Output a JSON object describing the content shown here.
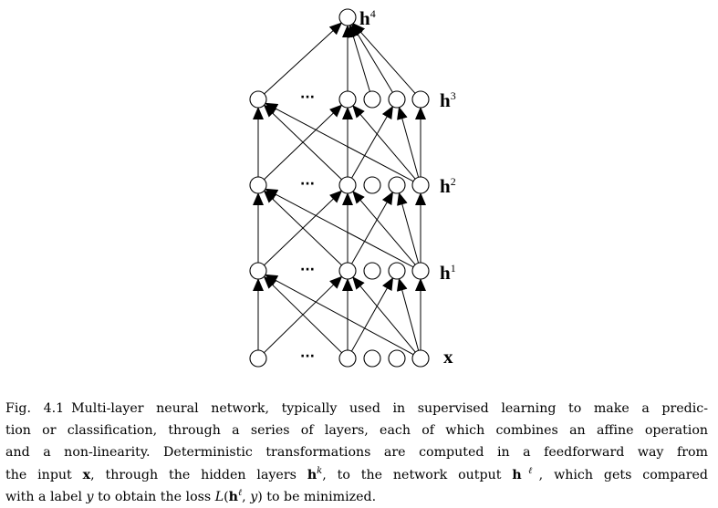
{
  "figure": {
    "layers": [
      {
        "id": "x",
        "base": "x",
        "sup": ""
      },
      {
        "id": "h1",
        "base": "h",
        "sup": "1"
      },
      {
        "id": "h2",
        "base": "h",
        "sup": "2"
      },
      {
        "id": "h3",
        "base": "h",
        "sup": "3"
      },
      {
        "id": "h4",
        "base": "h",
        "sup": "4"
      }
    ],
    "ellipsis": "···"
  },
  "caption": {
    "label": "Fig. 4.1",
    "line1": "Multi-layer neural network, typically used in supervised learning to make a predic-",
    "line2": "tion or classification, through a series of layers, each of which combines an affine operation",
    "line3": "and a non-linearity. Deterministic transformations are computed in a feedforward way from",
    "line4_a": "the input",
    "line4_x": "x",
    "line4_b": ", through the hidden layers",
    "line4_hk": "h",
    "line4_hk_sup": "k",
    "line4_c": ", to the network output",
    "line4_hl": "h",
    "line4_hl_sup": "ℓ",
    "line4_d": ", which gets compared",
    "line5_a": "with a label",
    "line5_y": "y",
    "line5_b": "to obtain the loss",
    "line5_L": "L",
    "line5_paren_open": "(",
    "line5_h": "h",
    "line5_h_sup": "ℓ",
    "line5_comma": ",",
    "line5_y2": "y",
    "line5_paren_close": ")",
    "line5_c": "to be minimized."
  }
}
